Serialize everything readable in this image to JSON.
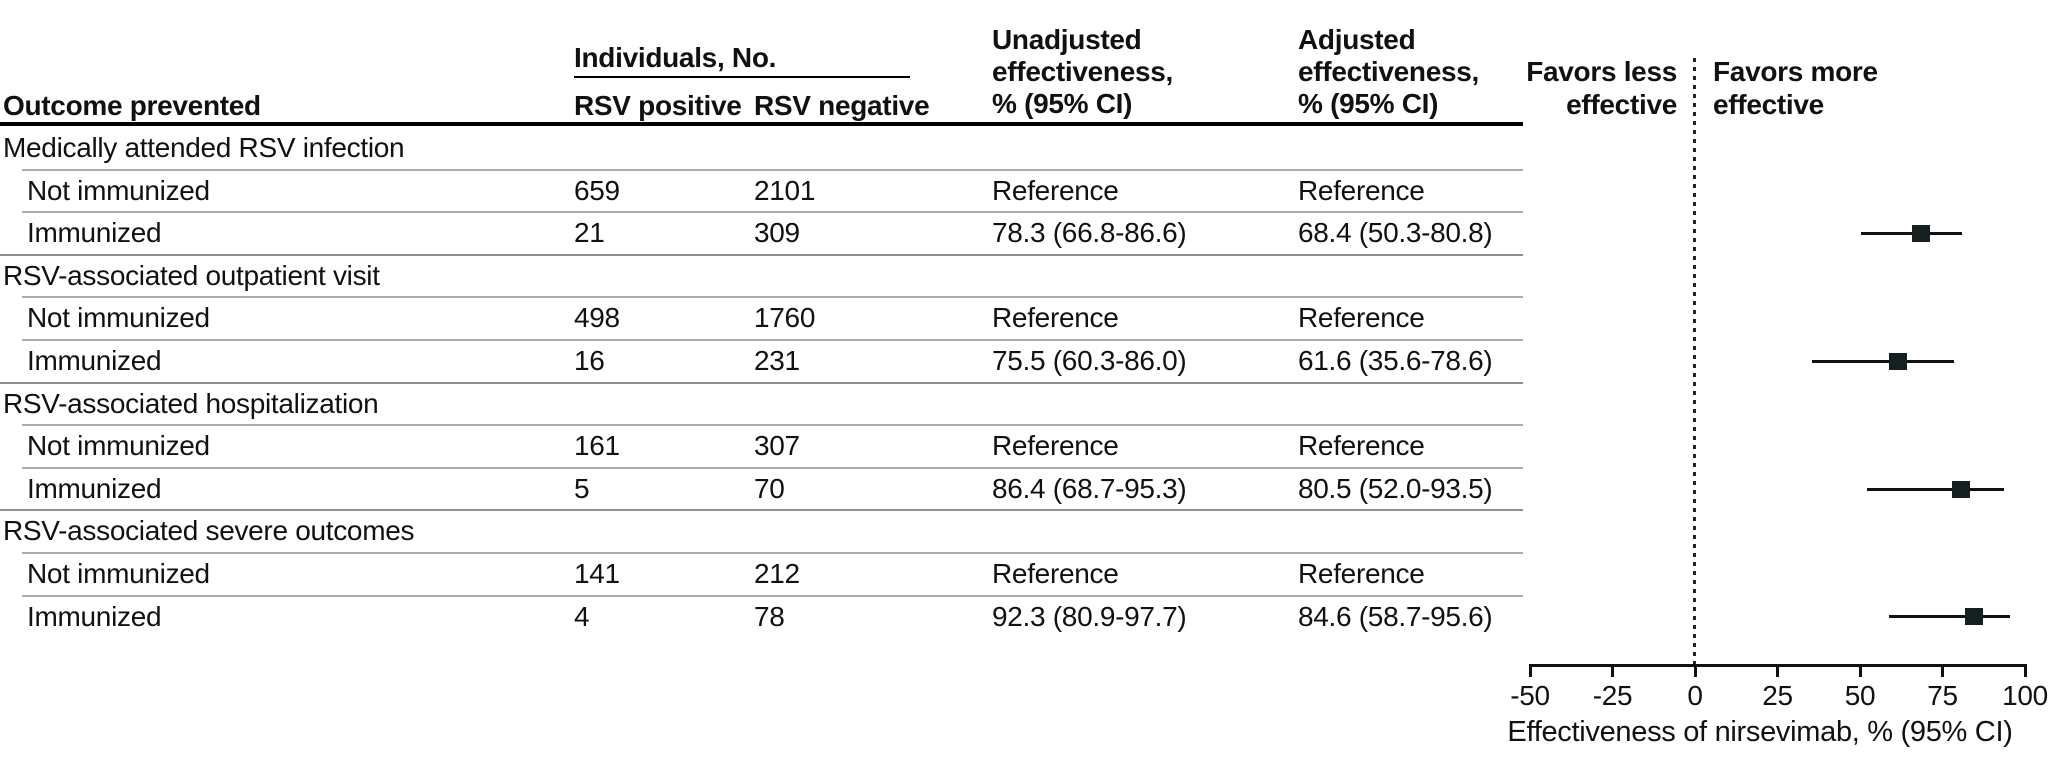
{
  "figure": {
    "background": "#ffffff",
    "text_color": "#111111"
  },
  "table": {
    "headers": {
      "outcome": "Outcome prevented",
      "individuals_group": "Individuals, No.",
      "rsv_positive": "RSV positive",
      "rsv_negative": "RSV negative",
      "unadjusted_lines": [
        "Unadjusted",
        "effectiveness,",
        "% (95% CI)"
      ],
      "adjusted_lines": [
        "Adjusted",
        "effectiveness,",
        "% (95% CI)"
      ]
    },
    "rows": [
      {
        "type": "section",
        "label": "Medically attended RSV infection"
      },
      {
        "type": "data",
        "label": "Not immunized",
        "rsv_positive": "659",
        "rsv_negative": "2101",
        "unadjusted": "Reference",
        "adjusted": "Reference"
      },
      {
        "type": "data",
        "label": "Immunized",
        "rsv_positive": "21",
        "rsv_negative": "309",
        "unadjusted": "78.3 (66.8-86.6)",
        "adjusted": "68.4 (50.3-80.8)"
      },
      {
        "type": "section",
        "label": "RSV-associated outpatient visit"
      },
      {
        "type": "data",
        "label": "Not immunized",
        "rsv_positive": "498",
        "rsv_negative": "1760",
        "unadjusted": "Reference",
        "adjusted": "Reference"
      },
      {
        "type": "data",
        "label": "Immunized",
        "rsv_positive": "16",
        "rsv_negative": "231",
        "unadjusted": "75.5 (60.3-86.0)",
        "adjusted": "61.6 (35.6-78.6)"
      },
      {
        "type": "section",
        "label": "RSV-associated hospitalization"
      },
      {
        "type": "data",
        "label": "Not immunized",
        "rsv_positive": "161",
        "rsv_negative": "307",
        "unadjusted": "Reference",
        "adjusted": "Reference"
      },
      {
        "type": "data",
        "label": "Immunized",
        "rsv_positive": "5",
        "rsv_negative": "70",
        "unadjusted": "86.4 (68.7-95.3)",
        "adjusted": "80.5 (52.0-93.5)"
      },
      {
        "type": "section",
        "label": "RSV-associated severe outcomes"
      },
      {
        "type": "data",
        "label": "Not immunized",
        "rsv_positive": "141",
        "rsv_negative": "212",
        "unadjusted": "Reference",
        "adjusted": "Reference"
      },
      {
        "type": "data",
        "label": "Immunized",
        "rsv_positive": "4",
        "rsv_negative": "78",
        "unadjusted": "92.3 (80.9-97.7)",
        "adjusted": "84.6 (58.7-95.6)"
      }
    ]
  },
  "chart_data": {
    "type": "scatter",
    "subtype": "forest-plot",
    "xlabel": "Effectiveness of nirsevimab, % (95% CI)",
    "x_ticks": [
      -50,
      -25,
      0,
      25,
      50,
      75,
      100
    ],
    "xlim": [
      -50,
      100
    ],
    "reference_line_x": 0,
    "grid": false,
    "marker": "square",
    "marker_color": "#152120",
    "annotations": {
      "left_of_line": [
        "Favors less",
        "effective"
      ],
      "right_of_line": [
        "Favors more",
        "effective"
      ]
    },
    "series": [
      {
        "name": "Adjusted effectiveness",
        "points": [
          {
            "outcome": "Medically attended RSV infection",
            "estimate": 68.4,
            "ci_low": 50.3,
            "ci_high": 80.8
          },
          {
            "outcome": "RSV-associated outpatient visit",
            "estimate": 61.6,
            "ci_low": 35.6,
            "ci_high": 78.6
          },
          {
            "outcome": "RSV-associated hospitalization",
            "estimate": 80.5,
            "ci_low": 52.0,
            "ci_high": 93.5
          },
          {
            "outcome": "RSV-associated severe outcomes",
            "estimate": 84.6,
            "ci_low": 58.7,
            "ci_high": 95.6
          }
        ]
      }
    ]
  },
  "colors": {
    "rule_thick": "#000000",
    "rule_light": "#ababab",
    "rule_section_top": "#8f8f8f",
    "axis": "#111111",
    "dotted_line": "#222222",
    "ci_line": "#111111"
  }
}
